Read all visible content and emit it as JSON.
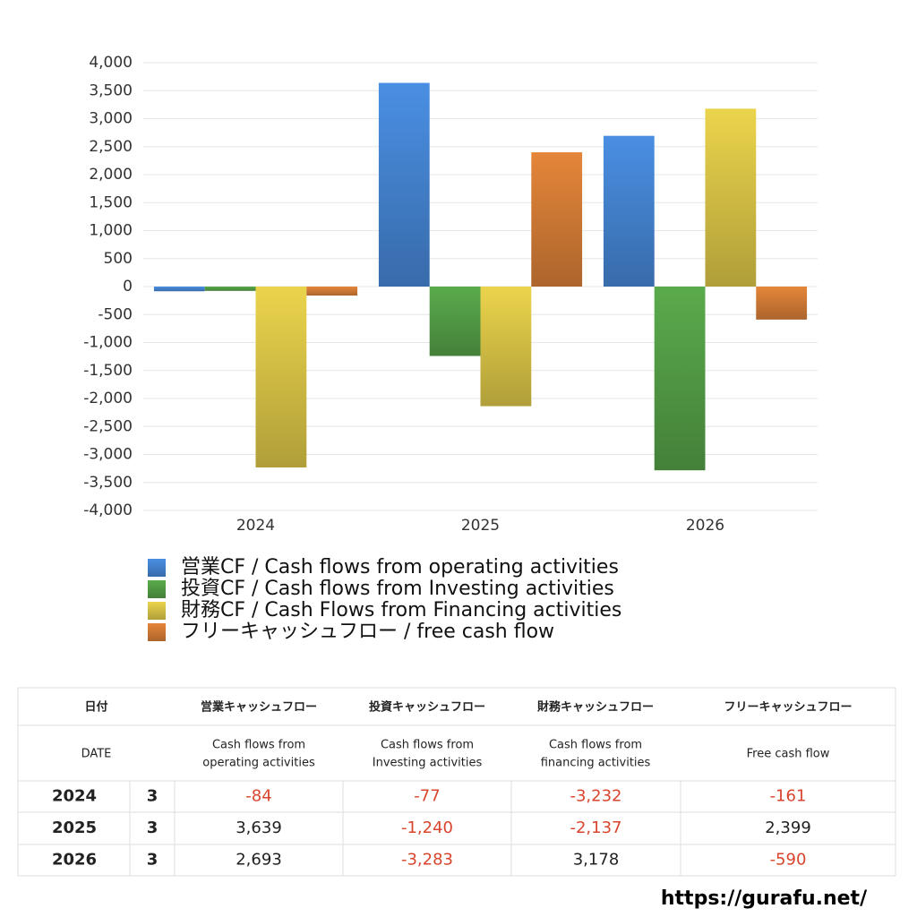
{
  "chart_data": {
    "type": "bar",
    "categories": [
      "2024",
      "2025",
      "2026"
    ],
    "series": [
      {
        "name": "営業CF / Cash flows from operating activities",
        "color": "#4a8fe3",
        "values": [
          -84,
          3639,
          2693
        ]
      },
      {
        "name": "投資CF / Cash flows from Investing activities",
        "color": "#5aab4c",
        "values": [
          -77,
          -1240,
          -3283
        ]
      },
      {
        "name": "財務CF / Cash Flows from Financing activities",
        "color": "#ebd44c",
        "values": [
          -3232,
          -2137,
          3178
        ]
      },
      {
        "name": "フリーキャッシュフロー / free cash flow",
        "color": "#e5863a",
        "values": [
          -161,
          2399,
          -590
        ]
      }
    ],
    "ylim": [
      -4000,
      4000
    ],
    "yticks": [
      {
        "value": -4000,
        "label": "-4,000"
      },
      {
        "value": -3500,
        "label": "-3,500"
      },
      {
        "value": -3000,
        "label": "-3,000"
      },
      {
        "value": -2500,
        "label": "-2,500"
      },
      {
        "value": -2000,
        "label": "-2,000"
      },
      {
        "value": -1500,
        "label": "-1,500"
      },
      {
        "value": -1000,
        "label": "-1,000"
      },
      -500,
      0,
      500,
      {
        "value": 1000,
        "label": "1,000"
      },
      {
        "value": 1500,
        "label": "1,500"
      },
      {
        "value": 2000,
        "label": "2,000"
      },
      {
        "value": 2500,
        "label": "2,500"
      },
      {
        "value": 3000,
        "label": "3,000"
      },
      {
        "value": 3500,
        "label": "3,500"
      },
      {
        "value": 4000,
        "label": "4,000"
      }
    ],
    "grid": true
  },
  "table": {
    "headers_ja": [
      "日付",
      "営業キャッシュフロー",
      "投資キャッシュフロー",
      "財務キャッシュフロー",
      "フリーキャッシュフロー"
    ],
    "headers_en": [
      [
        "DATE"
      ],
      [
        "Cash flows from",
        "operating activities"
      ],
      [
        "Cash flows from",
        "Investing activities"
      ],
      [
        "Cash flows from",
        "financing activities"
      ],
      [
        "Free cash flow"
      ]
    ],
    "rows": [
      [
        "2024",
        "3",
        "-84",
        "-77",
        "-3,232",
        "-161"
      ],
      [
        "2025",
        "3",
        "3,639",
        "-1,240",
        "-2,137",
        "2,399"
      ],
      [
        "2026",
        "3",
        "2,693",
        "-3,283",
        "3,178",
        "-590"
      ]
    ]
  },
  "footer": "https://gurafu.net/"
}
